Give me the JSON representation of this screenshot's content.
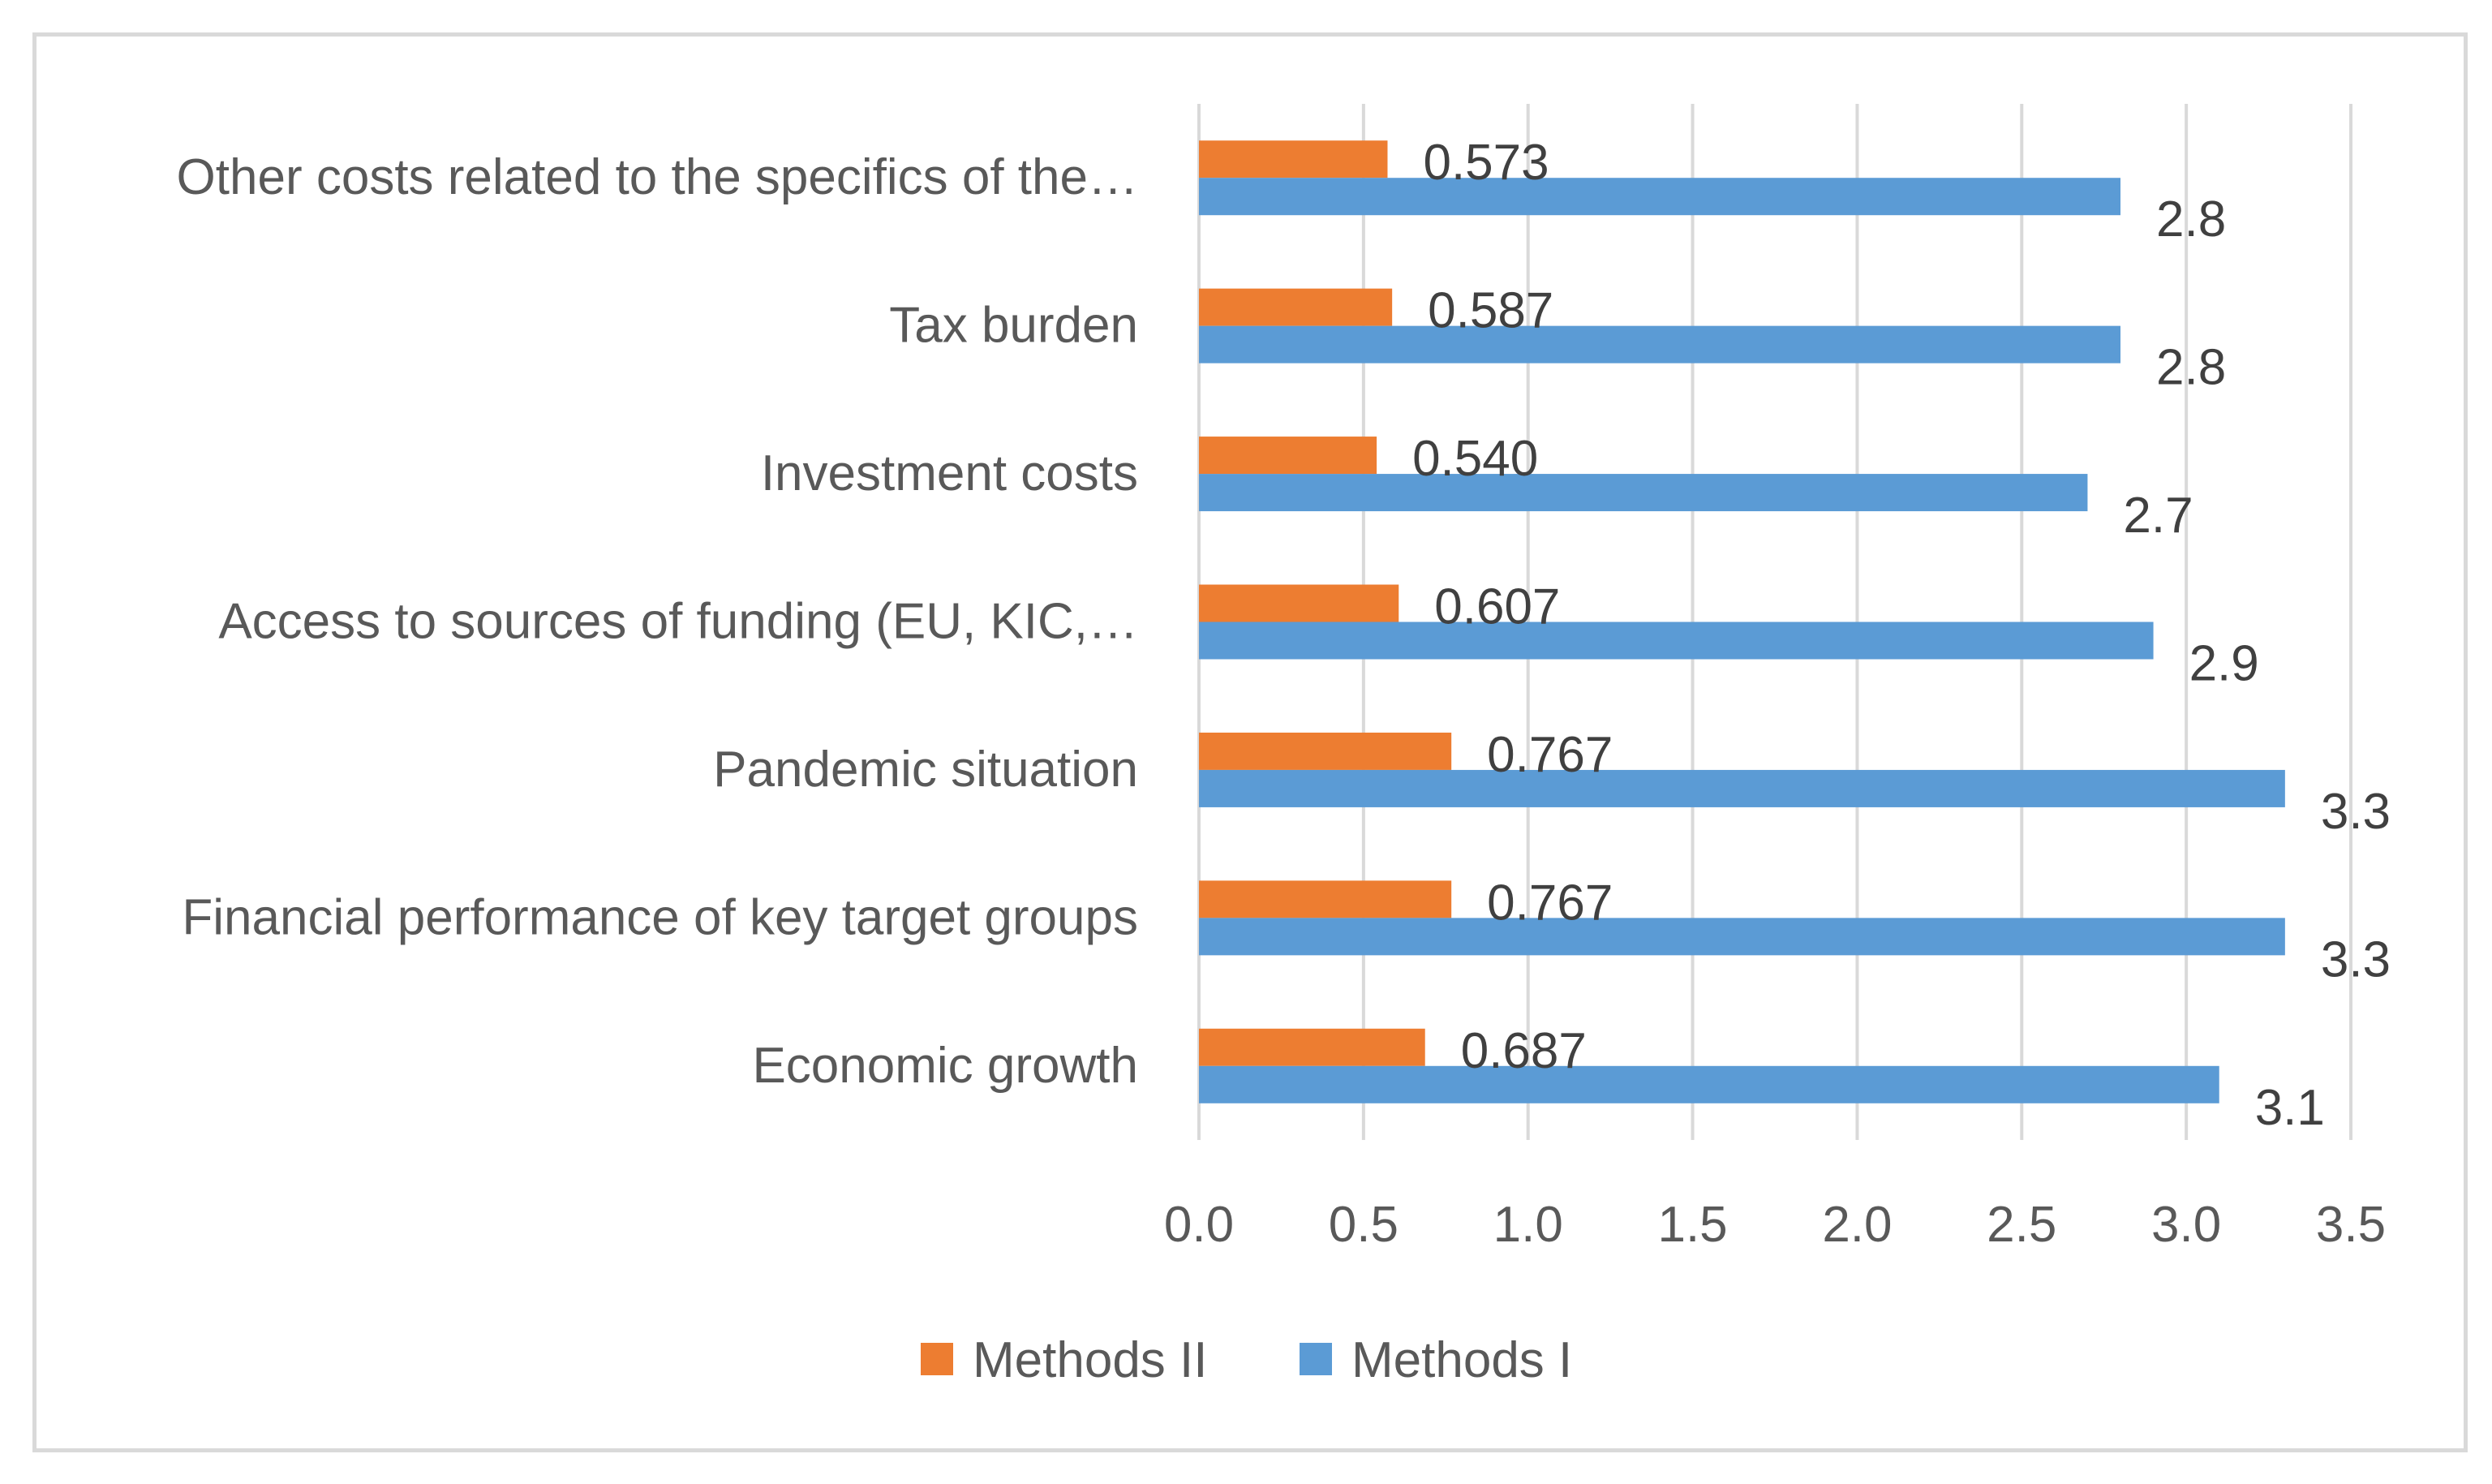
{
  "chart_data": {
    "type": "bar",
    "orientation": "horizontal",
    "title": "",
    "xlabel": "",
    "ylabel": "",
    "xlim": [
      0,
      3.5
    ],
    "ticks": [
      "0.0",
      "0.5",
      "1.0",
      "1.5",
      "2.0",
      "2.5",
      "3.0",
      "3.5"
    ],
    "tick_values": [
      0,
      0.5,
      1.0,
      1.5,
      2.0,
      2.5,
      3.0,
      3.5
    ],
    "grid": true,
    "legend_position": "bottom",
    "categories": [
      "Other costs related to the specifics of the…",
      "Tax burden",
      "Investment costs",
      "Access to sources of funding (EU, KIC,…",
      "Pandemic situation",
      "Financial performance of key target groups",
      "Economic growth"
    ],
    "series": [
      {
        "name": "Methods II",
        "color": "#ED7D31",
        "values": [
          0.573,
          0.587,
          0.54,
          0.607,
          0.767,
          0.767,
          0.687
        ],
        "labels": [
          "0.573",
          "0.587",
          "0.540",
          "0.607",
          "0.767",
          "0.767",
          "0.687"
        ]
      },
      {
        "name": "Methods I",
        "color": "#5B9BD5",
        "values": [
          2.8,
          2.8,
          2.7,
          2.9,
          3.3,
          3.3,
          3.1
        ],
        "labels": [
          "2.8",
          "2.8",
          "2.7",
          "2.9",
          "3.3",
          "3.3",
          "3.1"
        ]
      }
    ]
  }
}
